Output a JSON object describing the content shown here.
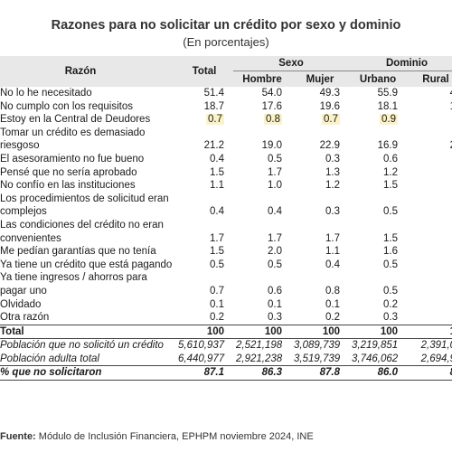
{
  "title": "Razones para no solicitar un crédito por sexo y dominio",
  "subtitle": "(En porcentajes)",
  "headers": {
    "reason": "Razón",
    "total": "Total",
    "sexo": "Sexo",
    "dominio": "Dominio",
    "hombre": "Hombre",
    "mujer": "Mujer",
    "urbano": "Urbano",
    "rural": "Rural"
  },
  "rows": [
    {
      "reason": "No lo he necesitado",
      "total": "51.4",
      "hombre": "54.0",
      "mujer": "49.3",
      "urbano": "55.9",
      "rural": "4"
    },
    {
      "reason": "No cumplo con los requisitos",
      "total": "18.7",
      "hombre": "17.6",
      "mujer": "19.6",
      "urbano": "18.1",
      "rural": "1"
    },
    {
      "reason": "Estoy en la Central de Deudores",
      "total": "0.7",
      "hombre": "0.8",
      "mujer": "0.7",
      "urbano": "0.9",
      "rural": ""
    },
    {
      "reason": "Tomar un crédito es demasiado",
      "total": "",
      "hombre": "",
      "mujer": "",
      "urbano": "",
      "rural": ""
    },
    {
      "reason": "riesgoso",
      "total": "21.2",
      "hombre": "19.0",
      "mujer": "22.9",
      "urbano": "16.9",
      "rural": "2"
    },
    {
      "reason": "El asesoramiento no fue bueno",
      "total": "0.4",
      "hombre": "0.5",
      "mujer": "0.3",
      "urbano": "0.6",
      "rural": ""
    },
    {
      "reason": "Pensé que no sería aprobado",
      "total": "1.5",
      "hombre": "1.7",
      "mujer": "1.3",
      "urbano": "1.2",
      "rural": ""
    },
    {
      "reason": "No confío en las instituciones",
      "total": "1.1",
      "hombre": "1.0",
      "mujer": "1.2",
      "urbano": "1.5",
      "rural": ""
    },
    {
      "reason": "Los procedimientos de solicitud eran",
      "total": "",
      "hombre": "",
      "mujer": "",
      "urbano": "",
      "rural": ""
    },
    {
      "reason": "complejos",
      "total": "0.4",
      "hombre": "0.4",
      "mujer": "0.3",
      "urbano": "0.5",
      "rural": ""
    },
    {
      "reason": "Las condiciones del crédito no eran",
      "total": "",
      "hombre": "",
      "mujer": "",
      "urbano": "",
      "rural": ""
    },
    {
      "reason": "convenientes",
      "total": "1.7",
      "hombre": "1.7",
      "mujer": "1.7",
      "urbano": "1.5",
      "rural": ""
    },
    {
      "reason": "Me pedían garantías que no tenía",
      "total": "1.5",
      "hombre": "2.0",
      "mujer": "1.1",
      "urbano": "1.6",
      "rural": ""
    },
    {
      "reason": "Ya tiene un crédito que está pagando",
      "total": "0.5",
      "hombre": "0.5",
      "mujer": "0.4",
      "urbano": "0.5",
      "rural": ""
    },
    {
      "reason": "Ya tiene ingresos / ahorros para",
      "total": "",
      "hombre": "",
      "mujer": "",
      "urbano": "",
      "rural": ""
    },
    {
      "reason": "pagar uno",
      "total": "0.7",
      "hombre": "0.6",
      "mujer": "0.8",
      "urbano": "0.5",
      "rural": ""
    },
    {
      "reason": "Olvidado",
      "total": "0.1",
      "hombre": "0.1",
      "mujer": "0.1",
      "urbano": "0.2",
      "rural": ""
    },
    {
      "reason": "Otra razón",
      "total": "0.2",
      "hombre": "0.3",
      "mujer": "0.2",
      "urbano": "0.3",
      "rural": ""
    }
  ],
  "total_row": {
    "reason": "Total",
    "total": "100",
    "hombre": "100",
    "mujer": "100",
    "urbano": "100",
    "rural": "1"
  },
  "pop_no_credit": {
    "reason": "Población que no solicitó un crédito",
    "total": "5,610,937",
    "hombre": "2,521,198",
    "mujer": "3,089,739",
    "urbano": "3,219,851",
    "rural": "2,391,0"
  },
  "pop_adult": {
    "reason": "Población adulta total",
    "total": "6,440,977",
    "hombre": "2,921,238",
    "mujer": "3,519,739",
    "urbano": "3,746,062",
    "rural": "2,694,9"
  },
  "pct_no_credit": {
    "reason": "% que no solicitaron",
    "total": "87.1",
    "hombre": "86.3",
    "mujer": "87.8",
    "urbano": "86.0",
    "rural": "8"
  },
  "source": {
    "label": "Fuente:",
    "text": "Módulo de Inclusión Financiera, EPHPM noviembre 2024, INE"
  },
  "highlight_color": "#fbf3c8"
}
